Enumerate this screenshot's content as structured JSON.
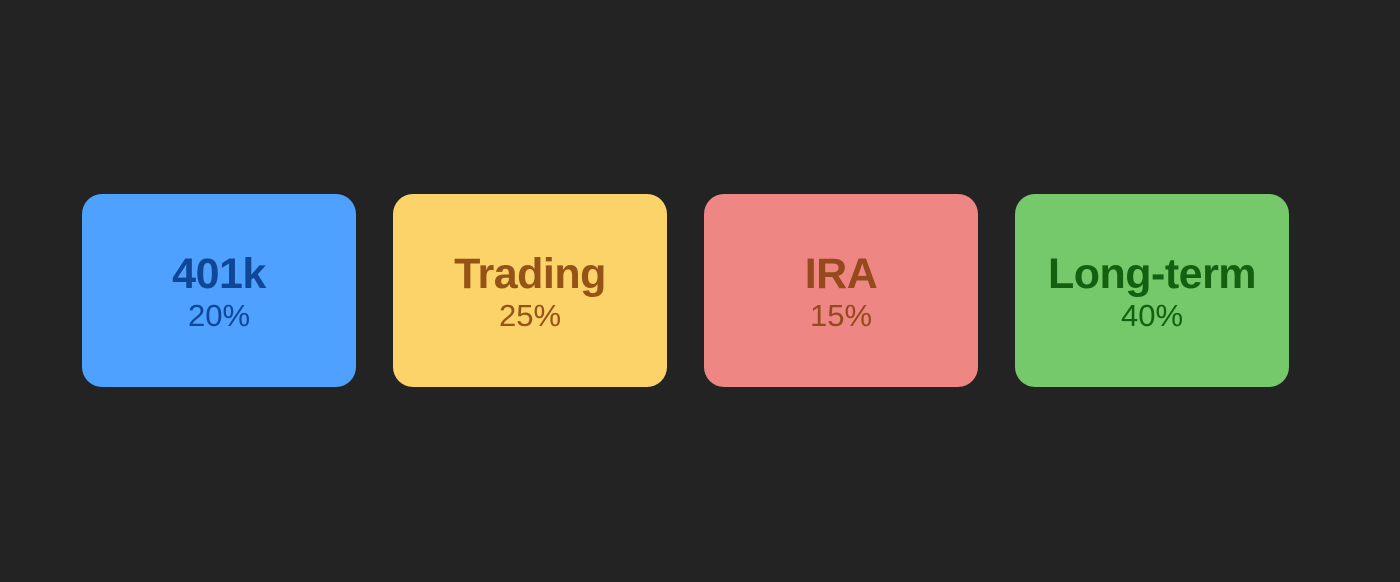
{
  "cards": [
    {
      "title": "401k",
      "percent": "20%",
      "bg": "#4fa1ff",
      "fg": "#0f4796"
    },
    {
      "title": "Trading",
      "percent": "25%",
      "bg": "#fbd368",
      "fg": "#955318"
    },
    {
      "title": "IRA",
      "percent": "15%",
      "bg": "#ee8684",
      "fg": "#954a1d"
    },
    {
      "title": "Long-term",
      "percent": "40%",
      "bg": "#76c96b",
      "fg": "#136110"
    }
  ],
  "colors": {
    "background": "#232323"
  }
}
